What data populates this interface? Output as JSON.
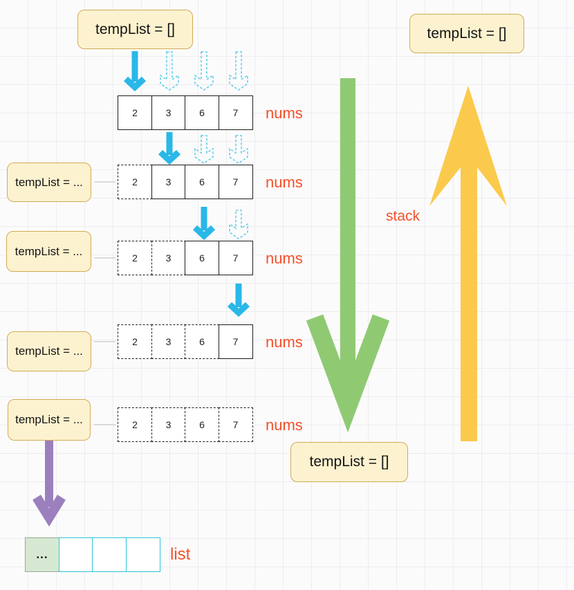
{
  "diagram": {
    "top_left_box": {
      "label": "tempList = []"
    },
    "top_right_box": {
      "label": "tempList = []"
    },
    "bottom_box": {
      "label": "tempList = []"
    },
    "left_boxes": [
      {
        "label": "tempList = ..."
      },
      {
        "label": "tempList = ..."
      },
      {
        "label": "tempList = ..."
      },
      {
        "label": "tempList = ..."
      }
    ],
    "stack_label": "stack",
    "list_label": "list",
    "arrays": [
      {
        "label": "nums",
        "values": [
          "2",
          "3",
          "6",
          "7"
        ],
        "dashed_cells": 0
      },
      {
        "label": "nums",
        "values": [
          "2",
          "3",
          "6",
          "7"
        ],
        "dashed_cells": 1
      },
      {
        "label": "nums",
        "values": [
          "2",
          "3",
          "6",
          "7"
        ],
        "dashed_cells": 2
      },
      {
        "label": "nums",
        "values": [
          "2",
          "3",
          "6",
          "7"
        ],
        "dashed_cells": 3
      },
      {
        "label": "nums",
        "values": [
          "2",
          "3",
          "6",
          "7"
        ],
        "dashed_cells": 4
      }
    ],
    "list": {
      "cells": [
        "...",
        "",
        "",
        ""
      ]
    },
    "colors": {
      "call_arrow_cyan": "#29b8e8",
      "ghost_arrow_cyan": "#63cfe8",
      "descend_arrow_green": "#8fca73",
      "return_arrow_yellow": "#fbca4d",
      "result_arrow_purple": "#9b80bd",
      "label_orange": "#f4502a",
      "note_fill": "#fdf2cf",
      "note_border": "#cfab55",
      "list_cell_green": "#d7e8d2",
      "list_border_cyan": "#2bc4da"
    }
  }
}
